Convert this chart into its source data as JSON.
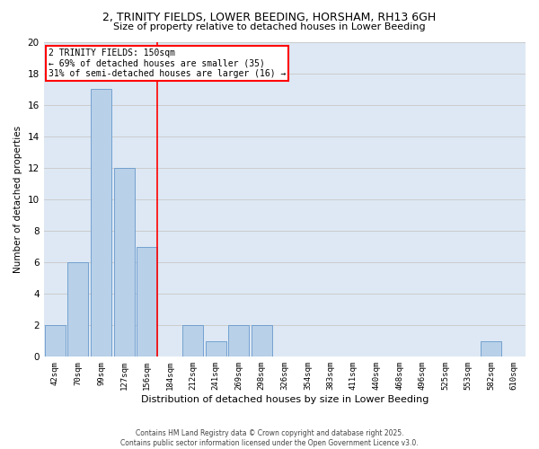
{
  "title_line1": "2, TRINITY FIELDS, LOWER BEEDING, HORSHAM, RH13 6GH",
  "title_line2": "Size of property relative to detached houses in Lower Beeding",
  "xlabel": "Distribution of detached houses by size in Lower Beeding",
  "ylabel": "Number of detached properties",
  "categories": [
    "42sqm",
    "70sqm",
    "99sqm",
    "127sqm",
    "156sqm",
    "184sqm",
    "212sqm",
    "241sqm",
    "269sqm",
    "298sqm",
    "326sqm",
    "354sqm",
    "383sqm",
    "411sqm",
    "440sqm",
    "468sqm",
    "496sqm",
    "525sqm",
    "553sqm",
    "582sqm",
    "610sqm"
  ],
  "values": [
    2,
    6,
    17,
    12,
    7,
    0,
    2,
    1,
    2,
    2,
    0,
    0,
    0,
    0,
    0,
    0,
    0,
    0,
    0,
    1,
    0
  ],
  "bar_color": "#b8d0e8",
  "bar_edge_color": "#6699cc",
  "red_line_index": 4,
  "annotation_text": "2 TRINITY FIELDS: 150sqm\n← 69% of detached houses are smaller (35)\n31% of semi-detached houses are larger (16) →",
  "annotation_box_color": "white",
  "annotation_box_edge_color": "red",
  "ylim": [
    0,
    20
  ],
  "yticks": [
    0,
    2,
    4,
    6,
    8,
    10,
    12,
    14,
    16,
    18,
    20
  ],
  "grid_color": "#cccccc",
  "background_color": "#dde8f4",
  "footer_line1": "Contains HM Land Registry data © Crown copyright and database right 2025.",
  "footer_line2": "Contains public sector information licensed under the Open Government Licence v3.0."
}
